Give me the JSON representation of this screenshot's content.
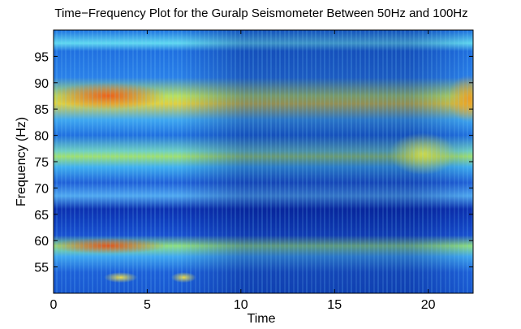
{
  "chart_data": {
    "type": "spectrogram",
    "title": "Time−Frequency Plot for the Guralp Seismometer Between 50Hz and 100Hz",
    "x_label": "Time",
    "y_label": "Frequency (Hz)",
    "xlim": [
      0,
      22.4
    ],
    "xticks": [
      0,
      5,
      10,
      15,
      20
    ],
    "ylim": [
      50,
      100
    ],
    "yticks": [
      55,
      60,
      65,
      70,
      75,
      80,
      85,
      90,
      95
    ],
    "colormap": "jet"
  }
}
